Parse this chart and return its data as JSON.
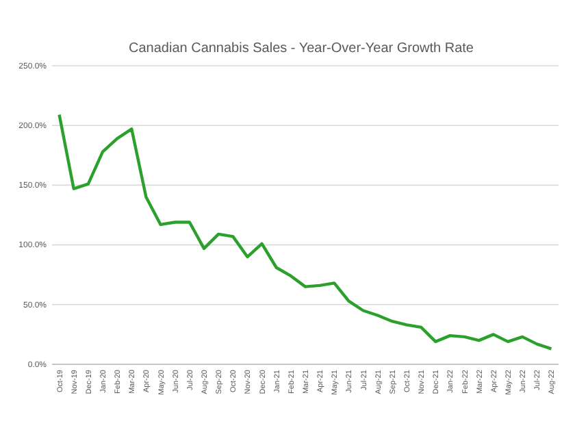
{
  "chart_data": {
    "type": "line",
    "title": "Canadian Cannabis Sales - Year-Over-Year Growth Rate",
    "categories": [
      "Oct-19",
      "Nov-19",
      "Dec-19",
      "Jan-20",
      "Feb-20",
      "Mar-20",
      "Apr-20",
      "May-20",
      "Jun-20",
      "Jul-20",
      "Aug-20",
      "Sep-20",
      "Oct-20",
      "Nov-20",
      "Dec-20",
      "Jan-21",
      "Feb-21",
      "Mar-21",
      "Apr-21",
      "May-21",
      "Jun-21",
      "Jul-21",
      "Aug-21",
      "Sep-21",
      "Oct-21",
      "Nov-21",
      "Dec-21",
      "Jan-22",
      "Feb-22",
      "Mar-22",
      "Apr-22",
      "May-22",
      "Jun-22",
      "Jul-22",
      "Aug-22"
    ],
    "series": [
      {
        "color": "#2ca02c",
        "values": [
          209,
          147,
          151,
          178,
          189,
          197,
          140,
          117,
          119,
          119,
          97,
          109,
          107,
          90,
          101,
          81,
          74,
          65,
          66,
          68,
          53,
          45,
          41,
          36,
          33,
          31,
          19,
          24,
          23,
          20,
          25,
          19,
          23,
          17,
          13
        ]
      }
    ],
    "ylim": [
      0,
      250
    ],
    "yticks": [
      {
        "value": 0,
        "label": "0.0%"
      },
      {
        "value": 50,
        "label": "50.0%"
      },
      {
        "value": 100,
        "label": "100.0%"
      },
      {
        "value": 150,
        "label": "150.0%"
      },
      {
        "value": 200,
        "label": "200.0%"
      },
      {
        "value": 250,
        "label": "250.0%"
      }
    ],
    "grid": "y",
    "line_style": "solid"
  }
}
